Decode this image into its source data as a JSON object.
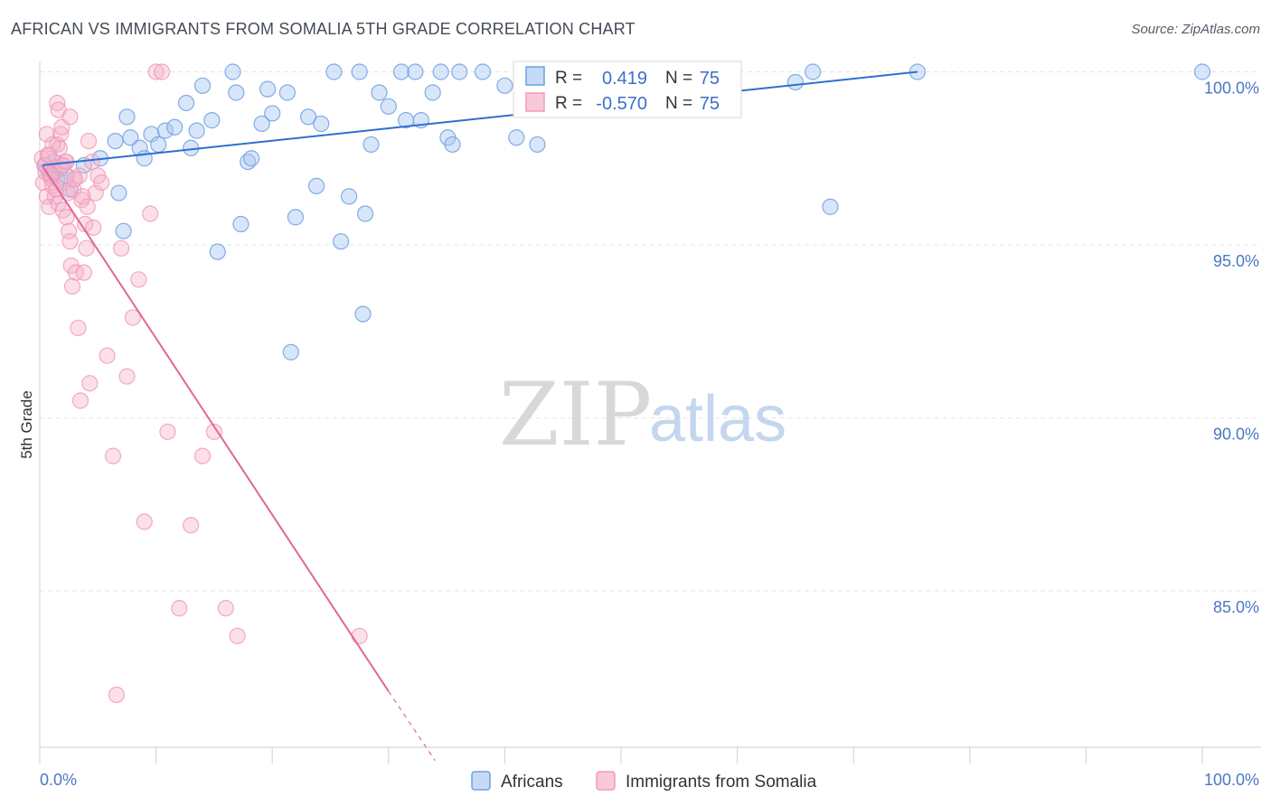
{
  "title": "AFRICAN VS IMMIGRANTS FROM SOMALIA 5TH GRADE CORRELATION CHART",
  "source": "Source: ZipAtlas.com",
  "watermark": {
    "part1": "ZIP",
    "part2": "atlas"
  },
  "colors": {
    "blue": "#6f9fe0",
    "blue_line": "#2f6fd0",
    "pink": "#f29ab8",
    "pink_line": "#e0669a",
    "axis_label": "#4a78c2"
  },
  "stats": [
    {
      "r_label": "R =",
      "r_value": "0.419",
      "n_label": "N =",
      "n_value": "75"
    },
    {
      "r_label": "R =",
      "r_value": "-0.570",
      "n_label": "N =",
      "n_value": "75"
    }
  ],
  "chart_data": {
    "type": "scatter",
    "title": "AFRICAN VS IMMIGRANTS FROM SOMALIA 5TH GRADE CORRELATION CHART",
    "xlabel": "",
    "ylabel": "5th Grade",
    "xlim": [
      0,
      100
    ],
    "ylim": [
      80,
      100.8
    ],
    "x_tick_labels": [
      "0.0%",
      "100.0%"
    ],
    "y_ticks": [
      85,
      90,
      95,
      100
    ],
    "y_tick_labels": [
      "85.0%",
      "90.0%",
      "95.0%",
      "100.0%"
    ],
    "grid": true,
    "legend_position": "bottom",
    "series": [
      {
        "name": "Africans",
        "color": "#6f9fe0",
        "trend": {
          "x": [
            0.2,
            75.5
          ],
          "y": [
            97.3,
            100.0
          ]
        },
        "points": [
          [
            0.5,
            97.3
          ],
          [
            0.8,
            97.1
          ],
          [
            1.0,
            97.0
          ],
          [
            1.2,
            97.4
          ],
          [
            1.5,
            96.9
          ],
          [
            1.8,
            97.2
          ],
          [
            2.3,
            97.0
          ],
          [
            2.6,
            96.6
          ],
          [
            3.8,
            97.3
          ],
          [
            5.2,
            97.5
          ],
          [
            6.5,
            98.0
          ],
          [
            6.8,
            96.5
          ],
          [
            7.2,
            95.4
          ],
          [
            7.5,
            98.7
          ],
          [
            7.8,
            98.1
          ],
          [
            8.6,
            97.8
          ],
          [
            9.0,
            97.5
          ],
          [
            9.6,
            98.2
          ],
          [
            10.2,
            97.9
          ],
          [
            10.8,
            98.3
          ],
          [
            11.6,
            98.4
          ],
          [
            12.6,
            99.1
          ],
          [
            13.0,
            97.8
          ],
          [
            13.5,
            98.3
          ],
          [
            14.0,
            99.6
          ],
          [
            14.8,
            98.6
          ],
          [
            15.3,
            94.8
          ],
          [
            16.6,
            100.0
          ],
          [
            16.9,
            99.4
          ],
          [
            17.3,
            95.6
          ],
          [
            17.9,
            97.4
          ],
          [
            18.2,
            97.5
          ],
          [
            19.1,
            98.5
          ],
          [
            19.6,
            99.5
          ],
          [
            20.0,
            98.8
          ],
          [
            21.3,
            99.4
          ],
          [
            21.6,
            91.9
          ],
          [
            22.0,
            95.8
          ],
          [
            23.1,
            98.7
          ],
          [
            23.8,
            96.7
          ],
          [
            24.2,
            98.5
          ],
          [
            25.3,
            100.0
          ],
          [
            25.9,
            95.1
          ],
          [
            26.6,
            96.4
          ],
          [
            27.5,
            100.0
          ],
          [
            27.8,
            93.0
          ],
          [
            28.0,
            95.9
          ],
          [
            28.5,
            97.9
          ],
          [
            29.2,
            99.4
          ],
          [
            30.0,
            99.0
          ],
          [
            31.1,
            100.0
          ],
          [
            31.5,
            98.6
          ],
          [
            32.3,
            100.0
          ],
          [
            32.8,
            98.6
          ],
          [
            33.8,
            99.4
          ],
          [
            34.5,
            100.0
          ],
          [
            35.1,
            98.1
          ],
          [
            35.5,
            97.9
          ],
          [
            36.1,
            100.0
          ],
          [
            38.1,
            100.0
          ],
          [
            40.0,
            99.6
          ],
          [
            41.0,
            98.1
          ],
          [
            42.8,
            97.9
          ],
          [
            44.5,
            99.3
          ],
          [
            46.0,
            100.0
          ],
          [
            48.0,
            100.0
          ],
          [
            50.0,
            99.7
          ],
          [
            53.0,
            99.6
          ],
          [
            56.5,
            100.0
          ],
          [
            59.2,
            100.0
          ],
          [
            65.0,
            99.7
          ],
          [
            66.5,
            100.0
          ],
          [
            68.0,
            96.1
          ],
          [
            75.5,
            100.0
          ],
          [
            100.0,
            100.0
          ]
        ]
      },
      {
        "name": "Immigrants from Somalia",
        "color": "#f29ab8",
        "trend": {
          "x": [
            0.2,
            30.0
          ],
          "y": [
            97.3,
            82.1
          ],
          "dashed_to": {
            "x": 34.0,
            "y": 80.1
          }
        },
        "points": [
          [
            0.2,
            97.5
          ],
          [
            0.3,
            96.8
          ],
          [
            0.4,
            97.3
          ],
          [
            0.5,
            97.1
          ],
          [
            0.6,
            96.4
          ],
          [
            0.7,
            97.6
          ],
          [
            0.8,
            96.1
          ],
          [
            0.9,
            97.0
          ],
          [
            1.0,
            96.9
          ],
          [
            1.1,
            96.7
          ],
          [
            1.2,
            97.1
          ],
          [
            1.3,
            96.4
          ],
          [
            1.4,
            96.6
          ],
          [
            1.5,
            97.9
          ],
          [
            1.6,
            96.2
          ],
          [
            1.7,
            97.8
          ],
          [
            1.8,
            98.2
          ],
          [
            1.9,
            97.3
          ],
          [
            2.0,
            96.0
          ],
          [
            2.1,
            96.8
          ],
          [
            2.2,
            97.4
          ],
          [
            2.3,
            95.8
          ],
          [
            2.4,
            96.5
          ],
          [
            2.5,
            95.4
          ],
          [
            2.6,
            95.1
          ],
          [
            2.7,
            94.4
          ],
          [
            2.8,
            93.8
          ],
          [
            2.9,
            96.6
          ],
          [
            3.0,
            96.9
          ],
          [
            3.1,
            94.2
          ],
          [
            3.3,
            92.6
          ],
          [
            3.4,
            97.0
          ],
          [
            3.5,
            90.5
          ],
          [
            3.6,
            96.3
          ],
          [
            3.7,
            96.4
          ],
          [
            3.8,
            94.2
          ],
          [
            3.9,
            95.6
          ],
          [
            4.0,
            94.9
          ],
          [
            4.1,
            96.1
          ],
          [
            4.2,
            98.0
          ],
          [
            4.3,
            91.0
          ],
          [
            4.5,
            97.4
          ],
          [
            4.6,
            95.5
          ],
          [
            4.8,
            96.5
          ],
          [
            5.0,
            97.0
          ],
          [
            5.3,
            96.8
          ],
          [
            5.8,
            91.8
          ],
          [
            6.3,
            88.9
          ],
          [
            6.6,
            82.0
          ],
          [
            7.0,
            94.9
          ],
          [
            7.5,
            91.2
          ],
          [
            8.0,
            92.9
          ],
          [
            8.5,
            94.0
          ],
          [
            9.0,
            87.0
          ],
          [
            9.5,
            95.9
          ],
          [
            10.0,
            100.0
          ],
          [
            10.5,
            100.0
          ],
          [
            11.0,
            89.6
          ],
          [
            12.0,
            84.5
          ],
          [
            13.0,
            86.9
          ],
          [
            14.0,
            88.9
          ],
          [
            15.0,
            89.6
          ],
          [
            16.0,
            84.5
          ],
          [
            17.0,
            83.7
          ],
          [
            27.5,
            83.7
          ],
          [
            1.5,
            99.1
          ],
          [
            1.6,
            98.9
          ],
          [
            1.9,
            98.4
          ],
          [
            2.3,
            97.4
          ],
          [
            2.6,
            98.7
          ],
          [
            0.6,
            98.2
          ],
          [
            1.1,
            97.9
          ],
          [
            0.8,
            97.6
          ],
          [
            2.0,
            97.3
          ],
          [
            3.0,
            96.9
          ]
        ]
      }
    ]
  }
}
